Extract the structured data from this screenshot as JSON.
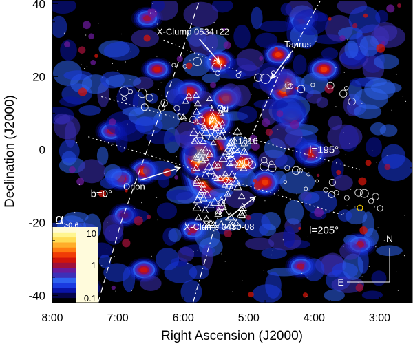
{
  "chart_data": {
    "type": "heatmap",
    "xlabel": "Right Ascension (J2000)",
    "ylabel": "Declination (J2000)",
    "xlim_hours": [
      8.0,
      2.5
    ],
    "ylim": [
      -42,
      41
    ],
    "xticks": [
      {
        "value": 8,
        "label": "8:00"
      },
      {
        "value": 7,
        "label": "7:00"
      },
      {
        "value": 6,
        "label": "6:00"
      },
      {
        "value": 5,
        "label": "5:00"
      },
      {
        "value": 4,
        "label": "4:00"
      },
      {
        "value": 3,
        "label": "3:00"
      }
    ],
    "yticks": [
      {
        "value": 40,
        "label": "40"
      },
      {
        "value": 20,
        "label": "20"
      },
      {
        "value": 0,
        "label": "0"
      },
      {
        "value": -20,
        "label": "-20"
      },
      {
        "value": -40,
        "label": "-40"
      }
    ],
    "colorbar": {
      "label_main": "α",
      "label_sub": ">0.6",
      "scale": "log",
      "ticks": [
        {
          "value": 10,
          "label": "10"
        },
        {
          "value": 1,
          "label": "1"
        },
        {
          "value": 0.1,
          "label": "0.1"
        }
      ],
      "colors": [
        "#000000",
        "#06054a",
        "#0a14a8",
        "#1a3ae0",
        "#2e62f0",
        "#3d2fb8",
        "#6a1a9a",
        "#a0103a",
        "#d2140a",
        "#f03c06",
        "#ff7a10",
        "#ffad2a",
        "#ffdc55",
        "#fff590",
        "#fffbd6"
      ]
    },
    "galactic_lines": [
      {
        "label": "b=0°",
        "style": "dashed",
        "label_ra": 7.25,
        "label_dec": -13
      },
      {
        "label": "",
        "style": "dash-dot"
      },
      {
        "label": "l=195°",
        "style": "dotted",
        "label_ra": 3.85,
        "label_dec": -1
      },
      {
        "label": "l=205°",
        "style": "dotted",
        "label_ra": 3.85,
        "label_dec": -23
      }
    ],
    "annotations": [
      {
        "text": "X-Clump 0534+22",
        "text_ra": 5.85,
        "text_dec": 31.5,
        "target_ra": 5.45,
        "target_dec": 24
      },
      {
        "text": "Taurus",
        "text_ra": 4.25,
        "text_dec": 28,
        "target_ra": 4.65,
        "target_dec": 19.5
      },
      {
        "text": "λ Ori",
        "text_ra": 5.45,
        "text_dec": 10.5,
        "target_ra": 5.6,
        "target_dec": 7
      },
      {
        "text": "L1616",
        "text_ra": 5.05,
        "text_dec": 1.5,
        "target_ra": 5.32,
        "target_dec": -2.5
      },
      {
        "text": "Orion",
        "text_ra": 6.75,
        "text_dec": -11,
        "target_ra": 6.05,
        "target_dec": -5
      },
      {
        "text": "X-Clump 0430-08",
        "text_ra": 5.45,
        "text_dec": -22,
        "target_ra": 4.9,
        "target_dec": -13
      }
    ],
    "compass": {
      "north": "N",
      "east": "E"
    }
  }
}
